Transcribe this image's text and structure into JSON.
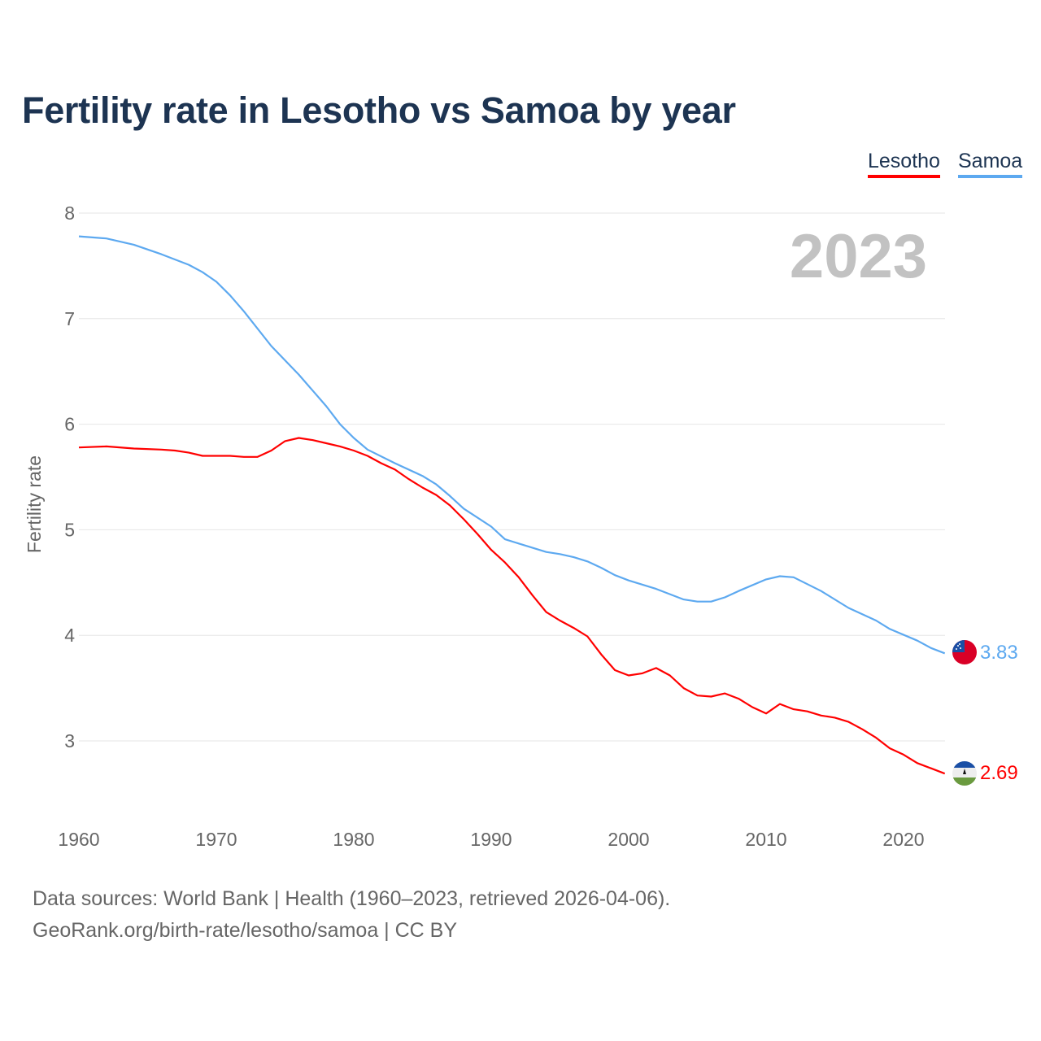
{
  "chart_data": {
    "type": "line",
    "title": "Fertility rate in Lesotho vs Samoa by year",
    "xlabel": "",
    "ylabel": "Fertility rate",
    "xlim": [
      1960,
      2023
    ],
    "ylim": [
      2.5,
      8.2
    ],
    "xticks": [
      1960,
      1970,
      1980,
      1990,
      2000,
      2010,
      2020
    ],
    "yticks": [
      3,
      4,
      5,
      6,
      7,
      8
    ],
    "grid": true,
    "legend_position": "top-right",
    "year_label": "2023",
    "series": [
      {
        "name": "Lesotho",
        "color": "#ff0000",
        "end_label": "2.69",
        "flag": "lesotho-flag",
        "x": [
          1960,
          1962,
          1964,
          1966,
          1967,
          1968,
          1969,
          1971,
          1972,
          1973,
          1974,
          1975,
          1976,
          1977,
          1978,
          1979,
          1980,
          1981,
          1982,
          1983,
          1984,
          1985,
          1986,
          1987,
          1988,
          1989,
          1990,
          1991,
          1992,
          1993,
          1994,
          1995,
          1996,
          1997,
          1998,
          1999,
          2000,
          2001,
          2002,
          2003,
          2004,
          2005,
          2006,
          2007,
          2008,
          2009,
          2010,
          2011,
          2012,
          2013,
          2014,
          2015,
          2016,
          2017,
          2018,
          2019,
          2020,
          2021,
          2022,
          2023
        ],
        "y": [
          5.78,
          5.79,
          5.77,
          5.76,
          5.75,
          5.73,
          5.7,
          5.7,
          5.69,
          5.69,
          5.75,
          5.84,
          5.87,
          5.85,
          5.82,
          5.79,
          5.75,
          5.7,
          5.63,
          5.57,
          5.48,
          5.4,
          5.33,
          5.23,
          5.1,
          4.96,
          4.81,
          4.69,
          4.55,
          4.38,
          4.22,
          4.14,
          4.07,
          3.99,
          3.82,
          3.67,
          3.62,
          3.64,
          3.69,
          3.62,
          3.5,
          3.43,
          3.42,
          3.45,
          3.4,
          3.32,
          3.26,
          3.35,
          3.3,
          3.28,
          3.24,
          3.22,
          3.18,
          3.11,
          3.03,
          2.93,
          2.87,
          2.79,
          2.74,
          2.69
        ]
      },
      {
        "name": "Samoa",
        "color": "#5da9f0",
        "end_label": "3.83",
        "flag": "samoa-flag",
        "x": [
          1960,
          1962,
          1964,
          1966,
          1968,
          1969,
          1970,
          1971,
          1972,
          1974,
          1976,
          1978,
          1979,
          1980,
          1981,
          1983,
          1985,
          1986,
          1987,
          1988,
          1990,
          1991,
          1992,
          1994,
          1995,
          1996,
          1997,
          1998,
          1999,
          2000,
          2002,
          2004,
          2005,
          2006,
          2007,
          2008,
          2010,
          2011,
          2012,
          2014,
          2016,
          2018,
          2019,
          2021,
          2022,
          2023
        ],
        "y": [
          7.78,
          7.76,
          7.7,
          7.61,
          7.51,
          7.44,
          7.35,
          7.22,
          7.07,
          6.74,
          6.47,
          6.17,
          6.0,
          5.87,
          5.76,
          5.63,
          5.51,
          5.43,
          5.32,
          5.2,
          5.03,
          4.91,
          4.87,
          4.79,
          4.77,
          4.74,
          4.7,
          4.64,
          4.57,
          4.52,
          4.44,
          4.34,
          4.32,
          4.32,
          4.36,
          4.42,
          4.53,
          4.56,
          4.55,
          4.42,
          4.26,
          4.14,
          4.06,
          3.95,
          3.88,
          3.83
        ]
      }
    ],
    "source_lines": [
      "Data sources: World Bank | Health (1960–2023, retrieved 2026-04-06).",
      "GeoRank.org/birth-rate/lesotho/samoa | CC BY"
    ]
  }
}
